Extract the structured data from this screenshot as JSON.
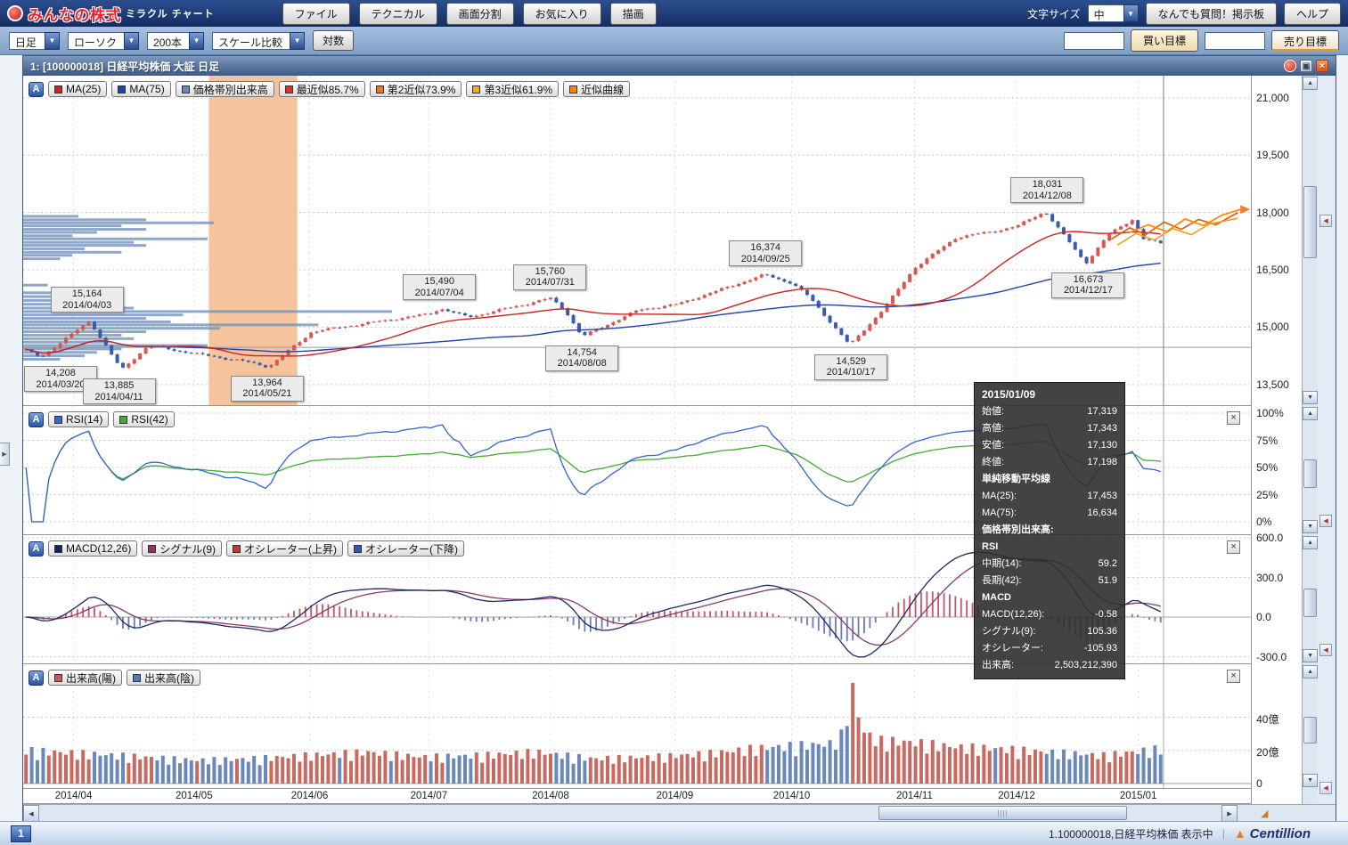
{
  "icons": {
    "dropdown_arrow": "▼",
    "scroll_up": "▲",
    "scroll_down": "▼",
    "scroll_left": "◀",
    "scroll_right": "▶",
    "close": "×",
    "panel_collapse": "◀",
    "expand": "▶",
    "grip": "||||",
    "resize": "◢",
    "brand_mark": "▲"
  },
  "header": {
    "logo_text": "みんなの株式",
    "logo_sub": "ミラクル チャート",
    "menu_buttons": [
      "ファイル",
      "テクニカル",
      "画面分割",
      "お気に入り",
      "描画"
    ],
    "font_size_label": "文字サイズ",
    "font_size_value": "中",
    "qa_button": "なんでも質問！掲示板",
    "help_button": "ヘルプ"
  },
  "toolbar": {
    "dropdowns": [
      "日足",
      "ローソク",
      "200本",
      "スケール比較"
    ],
    "log_button": "対数",
    "buy_label": "買い目標",
    "sell_label": "売り目標"
  },
  "window": {
    "title": "1:  [100000018] 日経平均株価 大証 日足"
  },
  "legends": {
    "main": [
      {
        "label": "MA(25)",
        "color": "#cc2222"
      },
      {
        "label": "MA(75)",
        "color": "#2244aa"
      },
      {
        "label": "価格帯別出来高",
        "color": "#6688bb"
      },
      {
        "label": "最近似85.7%",
        "color": "#dd3322"
      },
      {
        "label": "第2近似73.9%",
        "color": "#ee7722"
      },
      {
        "label": "第3近似61.9%",
        "color": "#eeaa22"
      },
      {
        "label": "近似曲線",
        "color": "#ff8800"
      }
    ],
    "rsi": [
      {
        "label": "RSI(14)",
        "color": "#3366cc"
      },
      {
        "label": "RSI(42)",
        "color": "#44aa33"
      }
    ],
    "macd": [
      {
        "label": "MACD(12,26)",
        "color": "#112266"
      },
      {
        "label": "シグナル(9)",
        "color": "#993366"
      },
      {
        "label": "オシレーター(上昇)",
        "color": "#cc3333"
      },
      {
        "label": "オシレーター(下降)",
        "color": "#3355bb"
      }
    ],
    "volume": [
      {
        "label": "出来高(陽)",
        "color": "#cc5555"
      },
      {
        "label": "出来高(陰)",
        "color": "#5577bb"
      }
    ]
  },
  "axes": {
    "main_ticks": [
      {
        "label": "21,000",
        "v": 21000
      },
      {
        "label": "19,500",
        "v": 19500
      },
      {
        "label": "18,000",
        "v": 18000
      },
      {
        "label": "16,500",
        "v": 16500
      },
      {
        "label": "15,000",
        "v": 15000
      },
      {
        "label": "13,500",
        "v": 13500
      }
    ],
    "rsi_ticks": [
      {
        "label": "100%",
        "v": 100
      },
      {
        "label": "75%",
        "v": 75
      },
      {
        "label": "50%",
        "v": 50
      },
      {
        "label": "25%",
        "v": 25
      },
      {
        "label": "0%",
        "v": 0
      }
    ],
    "macd_ticks": [
      {
        "label": "600.0",
        "v": 600
      },
      {
        "label": "300.0",
        "v": 300
      },
      {
        "label": "0.0",
        "v": 0
      },
      {
        "label": "-300.0",
        "v": -300
      }
    ],
    "volume_ticks": [
      {
        "label": "40億",
        "v": 40
      },
      {
        "label": "20億",
        "v": 20
      },
      {
        "label": "0",
        "v": 0
      }
    ],
    "x_ticks": [
      {
        "label": "2014/04",
        "t": 0.041
      },
      {
        "label": "2014/05",
        "t": 0.139
      },
      {
        "label": "2014/06",
        "t": 0.233
      },
      {
        "label": "2014/07",
        "t": 0.33
      },
      {
        "label": "2014/08",
        "t": 0.429
      },
      {
        "label": "2014/09",
        "t": 0.53
      },
      {
        "label": "2014/10",
        "t": 0.625
      },
      {
        "label": "2014/11",
        "t": 0.725
      },
      {
        "label": "2014/12",
        "t": 0.808
      },
      {
        "label": "2015/01",
        "t": 0.907
      }
    ]
  },
  "tooltip": {
    "date": "2015/01/09",
    "sections": [
      {
        "rows": [
          [
            "始値:",
            "17,319"
          ],
          [
            "高値:",
            "17,343"
          ],
          [
            "安値:",
            "17,130"
          ],
          [
            "終値:",
            "17,198"
          ]
        ]
      },
      {
        "title": "単純移動平均線",
        "rows": [
          [
            "MA(25):",
            "17,453"
          ],
          [
            "MA(75):",
            "16,634"
          ]
        ]
      },
      {
        "title": "価格帯別出来高:",
        "rows": []
      },
      {
        "title": "RSI",
        "rows": [
          [
            "中期(14):",
            "59.2"
          ],
          [
            "長期(42):",
            "51.9"
          ]
        ]
      },
      {
        "title": "MACD",
        "rows": [
          [
            "MACD(12,26):",
            "-0.58"
          ],
          [
            "シグナル(9):",
            "105.36"
          ],
          [
            "オシレーター:",
            "-105.93"
          ]
        ]
      },
      {
        "rows": [
          [
            "出来高:",
            "2,503,212,390"
          ]
        ]
      }
    ]
  },
  "status": {
    "tab": "1",
    "info": "1.100000018,日経平均株価 表示中",
    "brand": "Centillion"
  },
  "chart_data": {
    "type": "candlestick+indicators",
    "symbol": "日経平均株価",
    "exchange": "大証",
    "period": "日足",
    "bars_shown": 200,
    "y_range_main": [
      13500,
      21000
    ],
    "rsi_periods": [
      14,
      42
    ],
    "macd_params": [
      12,
      26,
      9
    ],
    "ma_periods": [
      25,
      75
    ],
    "h_line": 14470,
    "crosshair_t": 0.9275,
    "highlight_band": [
      0.151,
      0.223
    ],
    "annotations": [
      {
        "price": "14,208",
        "date": "2014/03/20",
        "t": 0.013,
        "v": 14208,
        "side": "below"
      },
      {
        "price": "15,164",
        "date": "2014/04/03",
        "t": 0.056,
        "v": 15164,
        "side": "above"
      },
      {
        "price": "13,885",
        "date": "2014/04/11",
        "t": 0.084,
        "v": 13885,
        "side": "below"
      },
      {
        "price": "13,964",
        "date": "2014/05/21",
        "t": 0.214,
        "v": 13964,
        "side": "below"
      },
      {
        "price": "15,490",
        "date": "2014/07/04",
        "t": 0.365,
        "v": 15490,
        "side": "above"
      },
      {
        "price": "15,760",
        "date": "2014/07/31",
        "t": 0.462,
        "v": 15760,
        "side": "above"
      },
      {
        "price": "14,754",
        "date": "2014/08/08",
        "t": 0.49,
        "v": 14754,
        "side": "below"
      },
      {
        "price": "16,374",
        "date": "2014/09/25",
        "t": 0.651,
        "v": 16374,
        "side": "above"
      },
      {
        "price": "14,529",
        "date": "2014/10/17",
        "t": 0.726,
        "v": 14529,
        "side": "below"
      },
      {
        "price": "18,031",
        "date": "2014/12/08",
        "t": 0.898,
        "v": 18031,
        "side": "above"
      },
      {
        "price": "16,673",
        "date": "2014/12/17",
        "t": 0.934,
        "v": 16673,
        "side": "below"
      }
    ],
    "price_anchors": [
      [
        0,
        14400
      ],
      [
        0.013,
        14208
      ],
      [
        0.056,
        15164
      ],
      [
        0.084,
        13885
      ],
      [
        0.108,
        14520
      ],
      [
        0.15,
        14300
      ],
      [
        0.19,
        14120
      ],
      [
        0.214,
        13964
      ],
      [
        0.252,
        14880
      ],
      [
        0.3,
        15100
      ],
      [
        0.356,
        15350
      ],
      [
        0.365,
        15490
      ],
      [
        0.39,
        15260
      ],
      [
        0.44,
        15600
      ],
      [
        0.462,
        15760
      ],
      [
        0.475,
        15450
      ],
      [
        0.49,
        14754
      ],
      [
        0.54,
        15450
      ],
      [
        0.574,
        15600
      ],
      [
        0.651,
        16374
      ],
      [
        0.675,
        16150
      ],
      [
        0.69,
        15800
      ],
      [
        0.726,
        14529
      ],
      [
        0.755,
        15450
      ],
      [
        0.783,
        16550
      ],
      [
        0.82,
        17350
      ],
      [
        0.852,
        17500
      ],
      [
        0.874,
        17650
      ],
      [
        0.898,
        18031
      ],
      [
        0.934,
        16673
      ],
      [
        0.955,
        17450
      ],
      [
        0.975,
        17820
      ],
      [
        0.985,
        17300
      ],
      [
        1,
        17198
      ]
    ],
    "volume_anchors": [
      [
        0,
        20
      ],
      [
        0.08,
        17
      ],
      [
        0.15,
        14
      ],
      [
        0.2,
        15
      ],
      [
        0.25,
        17
      ],
      [
        0.3,
        19
      ],
      [
        0.35,
        16
      ],
      [
        0.4,
        17
      ],
      [
        0.45,
        19
      ],
      [
        0.5,
        15
      ],
      [
        0.55,
        16
      ],
      [
        0.6,
        18
      ],
      [
        0.64,
        21
      ],
      [
        0.68,
        23
      ],
      [
        0.71,
        24
      ],
      [
        0.72,
        30
      ],
      [
        0.728,
        58
      ],
      [
        0.737,
        32
      ],
      [
        0.75,
        26
      ],
      [
        0.78,
        25
      ],
      [
        0.82,
        22
      ],
      [
        0.86,
        21
      ],
      [
        0.9,
        19
      ],
      [
        0.95,
        17
      ],
      [
        1,
        21
      ]
    ],
    "volume_profile": [
      [
        17900,
        0.045
      ],
      [
        17810,
        0.1
      ],
      [
        17730,
        0.155
      ],
      [
        17650,
        0.08
      ],
      [
        17560,
        0.1
      ],
      [
        17480,
        0.06
      ],
      [
        17390,
        0.04
      ],
      [
        17310,
        0.15
      ],
      [
        17220,
        0.09
      ],
      [
        17140,
        0.1
      ],
      [
        17050,
        0.05
      ],
      [
        16960,
        0.08
      ],
      [
        16880,
        0.04
      ],
      [
        16790,
        0.03
      ],
      [
        16100,
        0.02
      ],
      [
        15900,
        0.03
      ],
      [
        15800,
        0.06
      ],
      [
        15700,
        0.05
      ],
      [
        15600,
        0.07
      ],
      [
        15500,
        0.09
      ],
      [
        15410,
        0.3
      ],
      [
        15320,
        0.13
      ],
      [
        15230,
        0.1
      ],
      [
        15140,
        0.12
      ],
      [
        15060,
        0.24
      ],
      [
        14970,
        0.16
      ],
      [
        14880,
        0.1
      ],
      [
        14790,
        0.08
      ],
      [
        14700,
        0.09
      ],
      [
        14610,
        0.07
      ],
      [
        14520,
        0.15
      ],
      [
        14430,
        0.08
      ],
      [
        14340,
        0.06
      ],
      [
        14250,
        0.05
      ],
      [
        14160,
        0.03
      ]
    ],
    "forecast_lines": [
      {
        "color": "#e06010",
        "points": [
          [
            0.885,
            17300
          ],
          [
            0.9,
            17600
          ],
          [
            0.913,
            17420
          ],
          [
            0.928,
            17750
          ],
          [
            0.942,
            17560
          ],
          [
            0.956,
            17820
          ],
          [
            0.97,
            17680
          ],
          [
            0.988,
            18000
          ]
        ]
      },
      {
        "color": "#f0a030",
        "points": [
          [
            0.89,
            17150
          ],
          [
            0.905,
            17450
          ],
          [
            0.92,
            17280
          ],
          [
            0.935,
            17580
          ],
          [
            0.95,
            17420
          ],
          [
            0.965,
            17700
          ],
          [
            0.988,
            17850
          ]
        ]
      },
      {
        "color": "#ff8800",
        "points": [
          [
            0.9,
            17480
          ],
          [
            0.915,
            17680
          ],
          [
            0.93,
            17500
          ],
          [
            0.945,
            17830
          ],
          [
            0.96,
            17660
          ],
          [
            0.975,
            17930
          ],
          [
            0.99,
            18080
          ]
        ]
      }
    ]
  }
}
